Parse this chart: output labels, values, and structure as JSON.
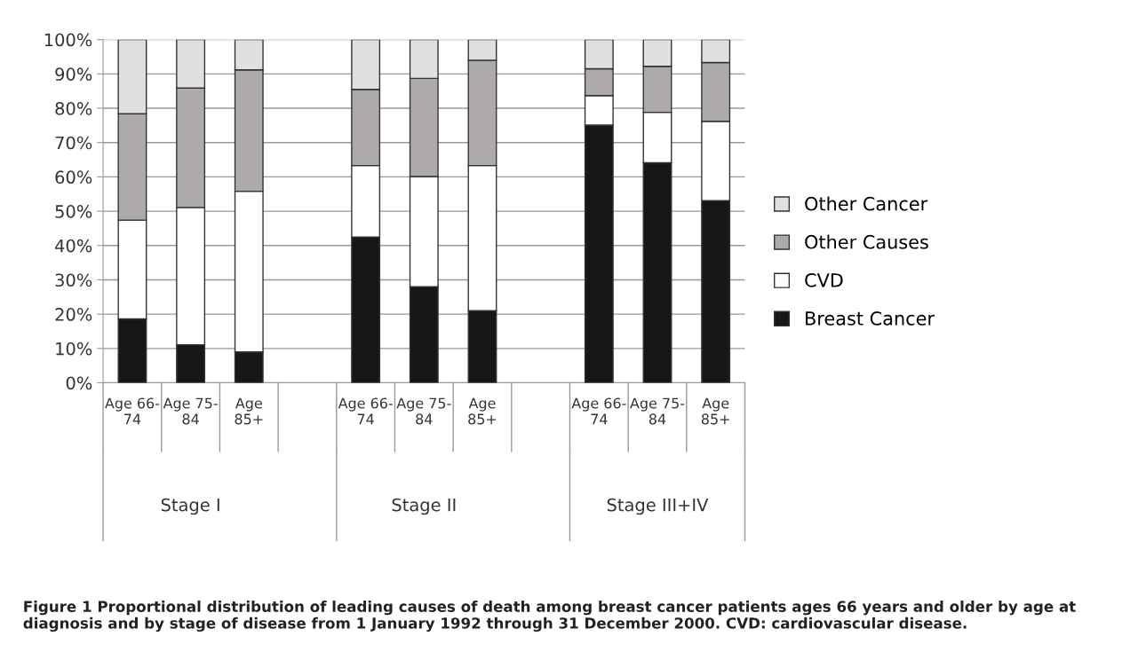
{
  "chart_data": {
    "type": "bar",
    "stacked": true,
    "categories": [
      "Age 66-74",
      "Age 75-84",
      "Age 85+",
      null,
      "Age 66-74",
      "Age 75-84",
      "Age 85+",
      null,
      "Age 66-74",
      "Age 75-84",
      "Age 85+"
    ],
    "series": [
      {
        "name": "Breast Cancer",
        "color": "#161718",
        "values": [
          18.6,
          11.1,
          9.0,
          null,
          42.5,
          28.0,
          21.0,
          null,
          75.1,
          64.1,
          53.1
        ]
      },
      {
        "name": "CVD",
        "color": "#ffffff",
        "values": [
          28.8,
          40.0,
          46.8,
          null,
          20.8,
          32.1,
          42.3,
          null,
          8.6,
          14.7,
          23.1
        ]
      },
      {
        "name": "Other Causes",
        "color": "#adaaa9",
        "values": [
          31.0,
          34.8,
          35.4,
          null,
          22.2,
          28.6,
          30.7,
          null,
          7.8,
          13.4,
          17.1
        ]
      },
      {
        "name": "Other Cancer",
        "color": "#e0e0e0",
        "values": [
          21.6,
          14.1,
          8.8,
          null,
          14.5,
          11.3,
          6.0,
          null,
          8.5,
          7.8,
          6.7
        ]
      }
    ],
    "ylim": [
      0,
      100
    ],
    "yticks": [
      {
        "value": 0,
        "label": "0%"
      },
      {
        "value": 10,
        "label": "10%"
      },
      {
        "value": 20,
        "label": "20%"
      },
      {
        "value": 30,
        "label": "30%"
      },
      {
        "value": 40,
        "label": "40%"
      },
      {
        "value": 50,
        "label": "50%"
      },
      {
        "value": 60,
        "label": "60%"
      },
      {
        "value": 70,
        "label": "70%"
      },
      {
        "value": 80,
        "label": "80%"
      },
      {
        "value": 90,
        "label": "90%"
      },
      {
        "value": 100,
        "label": "100%"
      }
    ],
    "grid": "y",
    "legend": "right",
    "annotations": [
      "Stage I",
      "Stage II",
      "Stage III+IV",
      "Figure 1 Proportional distribution of leading causes of death among breast cancer patients ages 66 years and older by age at diagnosis and by stage of disease from 1 January 1992 through 31 December 2000. CVD: cardiovascular disease."
    ]
  }
}
